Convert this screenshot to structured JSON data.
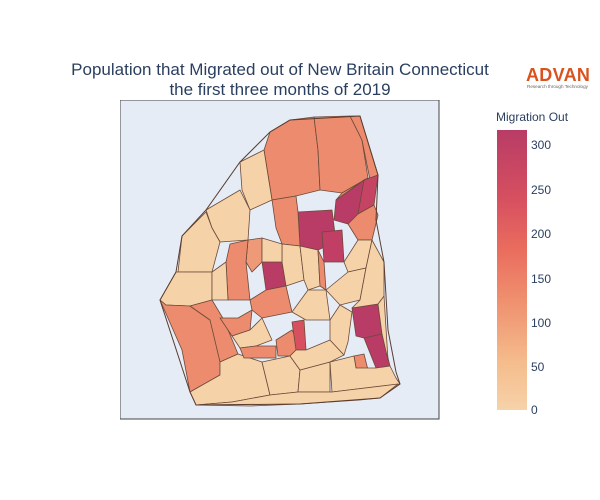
{
  "title": {
    "line1": "Population that Migrated out of New Britain Connecticut",
    "line2": "the first three months of 2019"
  },
  "logo": {
    "name": "ADVAN",
    "tagline": "Research through Technology",
    "color": "#d9531e"
  },
  "colorbar": {
    "title": "Migration Out",
    "min": 0,
    "max": 315,
    "ticks": [
      "300",
      "250",
      "200",
      "150",
      "100",
      "50",
      "0"
    ],
    "colors": [
      "#b83c66",
      "#d75060",
      "#ea6d5e",
      "#f09873",
      "#f5bc8c",
      "#f6d2a9"
    ]
  },
  "map": {
    "background": "#e5ecf6",
    "colorscale": "Sunset-like (light peach low, dark magenta high)"
  }
}
